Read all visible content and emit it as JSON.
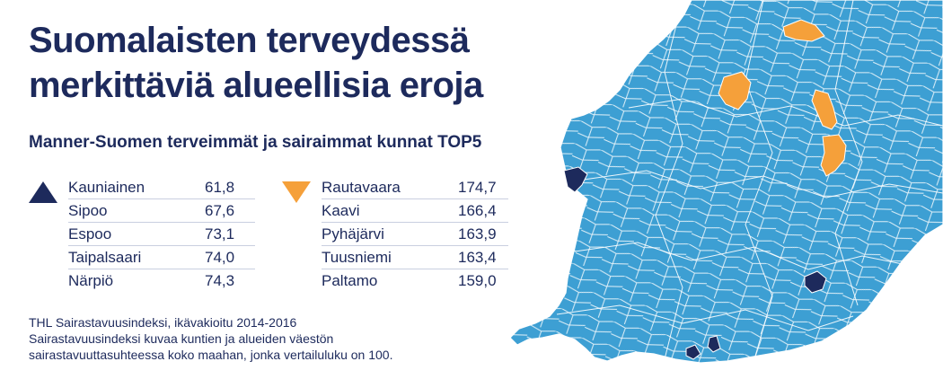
{
  "title": "Suomalaisten terveydessä merkittäviä alueellisia eroja",
  "subtitle": "Manner-Suomen terveimmät ja sairaimmat kunnat TOP5",
  "healthiest": {
    "marker": "navy-triangle-up",
    "color": "#1d2a5c",
    "rows": [
      {
        "name": "Kauniainen",
        "value": "61,8"
      },
      {
        "name": "Sipoo",
        "value": "67,6"
      },
      {
        "name": "Espoo",
        "value": "73,1"
      },
      {
        "name": "Taipalsaari",
        "value": "74,0"
      },
      {
        "name": "Närpiö",
        "value": "74,3"
      }
    ]
  },
  "sickest": {
    "marker": "orange-triangle-down",
    "color": "#f5a03a",
    "rows": [
      {
        "name": "Rautavaara",
        "value": "174,7"
      },
      {
        "name": "Kaavi",
        "value": "166,4"
      },
      {
        "name": "Pyhäjärvi",
        "value": "163,9"
      },
      {
        "name": "Tuusniemi",
        "value": "163,4"
      },
      {
        "name": "Paltamo",
        "value": "159,0"
      }
    ]
  },
  "footnote": {
    "line1": "THL Sairastavuusindeksi, ikävakioitu 2014-2016",
    "line2": "Sairastavuusindeksi kuvaa kuntien ja alueiden väestön",
    "line3": "sairastavuuttasuhteessa koko maahan, jonka vertailuluku on 100."
  },
  "map": {
    "base_color": "#3d9fd3",
    "border_color": "#ffffff",
    "highlight_healthy_color": "#1d2a5c",
    "highlight_sick_color": "#f5a03a"
  }
}
